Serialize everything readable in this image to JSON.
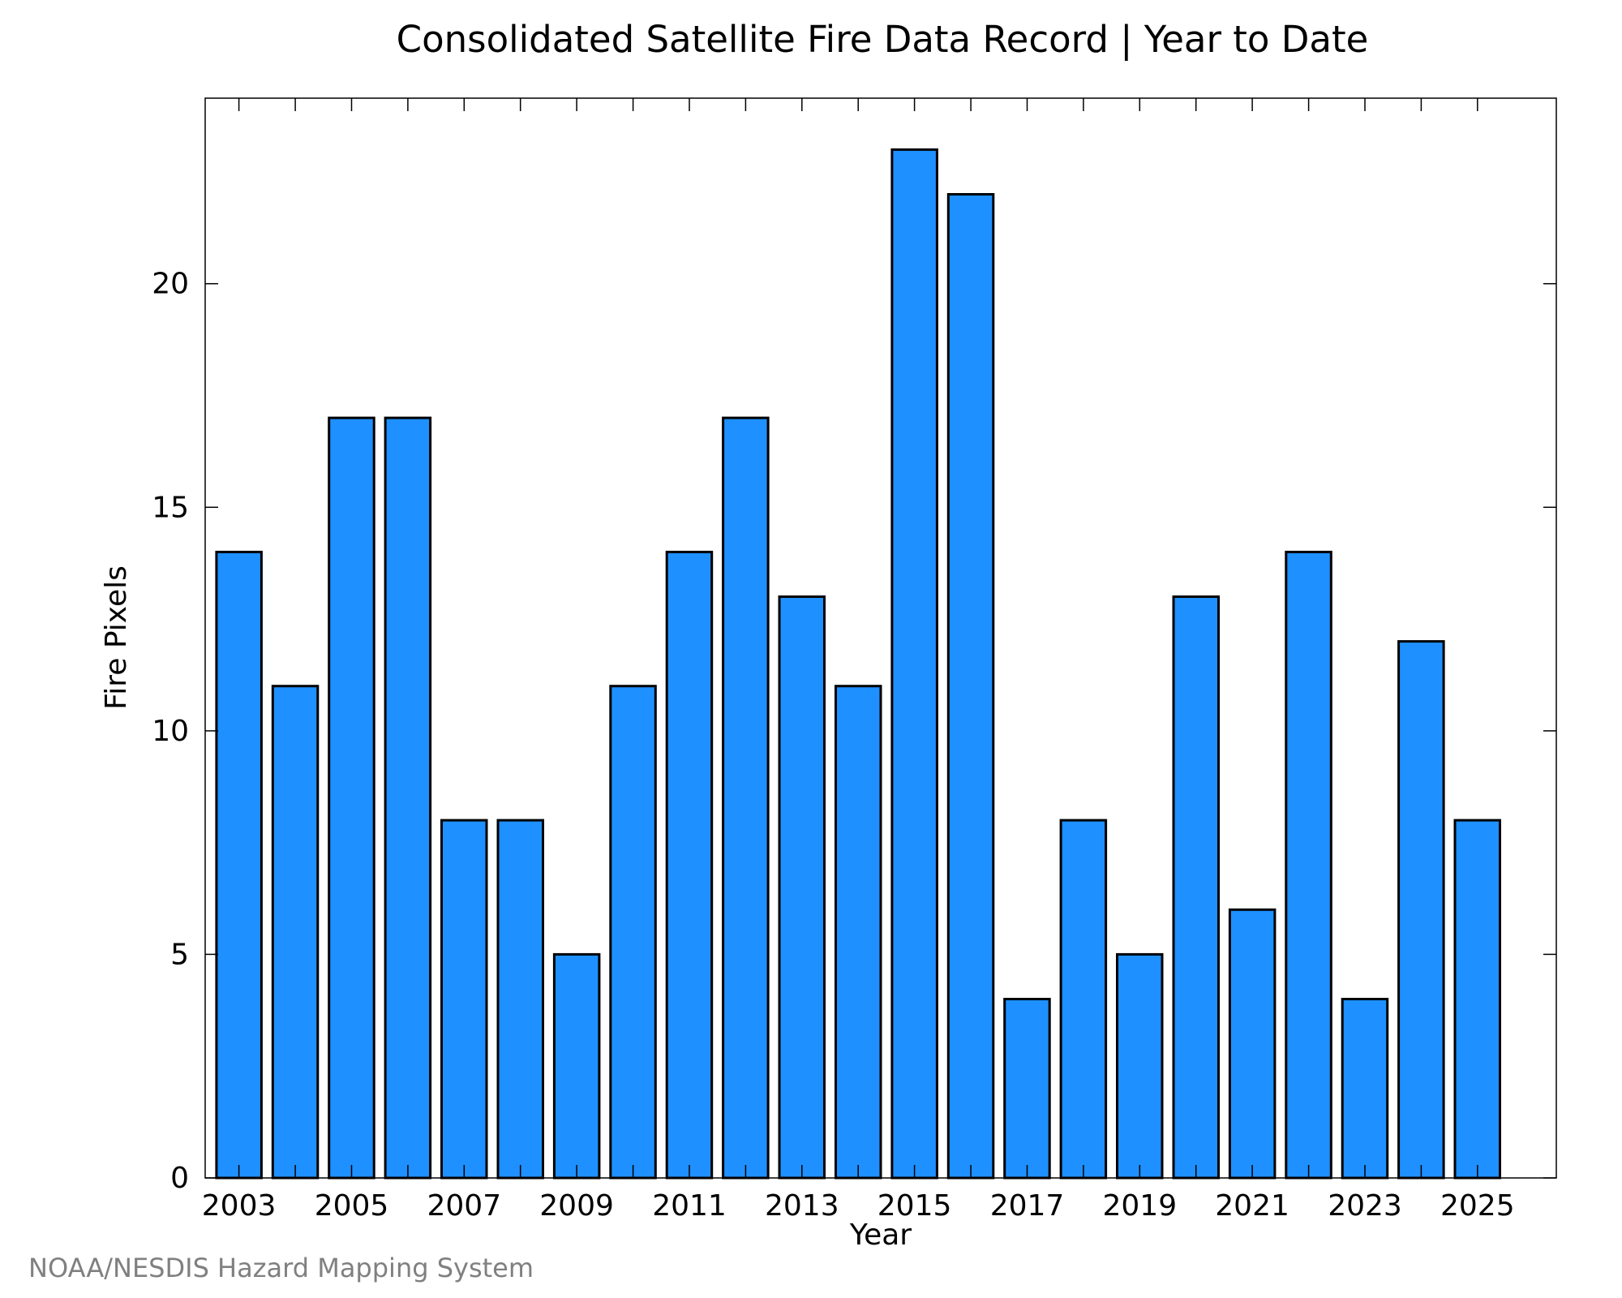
{
  "chart_data": {
    "type": "bar",
    "title": "Consolidated Satellite Fire Data Record | Year to Date",
    "xlabel": "Year",
    "ylabel": "Fire Pixels",
    "credit": "NOAA/NESDIS Hazard Mapping System",
    "categories": [
      2003,
      2004,
      2005,
      2006,
      2007,
      2008,
      2009,
      2010,
      2011,
      2012,
      2013,
      2014,
      2015,
      2016,
      2017,
      2018,
      2019,
      2020,
      2021,
      2022,
      2023,
      2024,
      2025
    ],
    "values": [
      14,
      11,
      17,
      17,
      8,
      8,
      5,
      11,
      14,
      17,
      13,
      11,
      23,
      22,
      4,
      8,
      5,
      13,
      6,
      14,
      4,
      12,
      8
    ],
    "x_tick_labels": [
      "2003",
      "2005",
      "2007",
      "2009",
      "2011",
      "2013",
      "2015",
      "2017",
      "2019",
      "2021",
      "2023",
      "2025"
    ],
    "y_tick_labels": [
      "0",
      "5",
      "10",
      "15",
      "20"
    ],
    "y_ticks": [
      0,
      5,
      10,
      15,
      20
    ],
    "ylim": [
      0,
      24.15
    ],
    "xlim": [
      2002.4,
      2026.4
    ],
    "grid": false,
    "legend": "none",
    "bar_color": "#1E90FF",
    "bar_edge_color": "#000000"
  }
}
